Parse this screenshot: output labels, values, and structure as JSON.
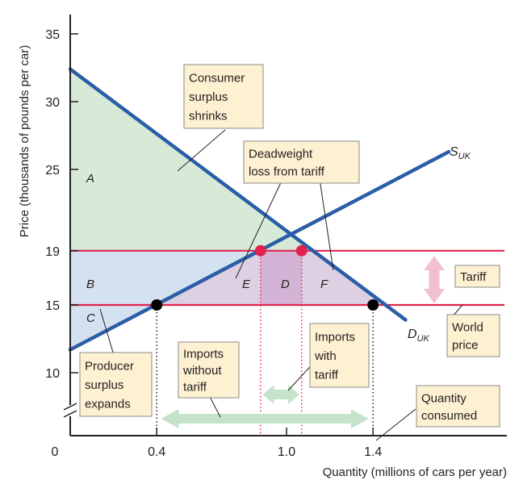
{
  "chart_data": {
    "type": "line",
    "xlabel": "Quantity (millions of cars per year)",
    "ylabel": "Price (thousands of pounds per car)",
    "xlim": [
      0,
      2.0
    ],
    "ylim": [
      8,
      37
    ],
    "origin_label": "0",
    "x_ticks": [
      {
        "value": 0.4,
        "label": "0.4"
      },
      {
        "value": 1.0,
        "label": "1.0"
      },
      {
        "value": 1.4,
        "label": "1.4"
      }
    ],
    "y_ticks": [
      {
        "value": 10,
        "label": "10",
        "color": "#231f20"
      },
      {
        "value": 15,
        "label": "15",
        "color": "#231f20"
      },
      {
        "value": 19,
        "label": "19",
        "color": "#e0244e"
      },
      {
        "value": 25,
        "label": "25",
        "color": "#231f20"
      },
      {
        "value": 30,
        "label": "30",
        "color": "#231f20"
      },
      {
        "value": 35,
        "label": "35",
        "color": "#231f20"
      }
    ],
    "series": [
      {
        "name": "D_UK",
        "main": "D",
        "sub": "UK",
        "color": "#2b5ea7",
        "x": [
          0,
          1.55
        ],
        "y": [
          32.4,
          13.9
        ]
      },
      {
        "name": "S_UK",
        "main": "S",
        "sub": "UK",
        "color": "#2b5ea7",
        "x": [
          0,
          1.75
        ],
        "y": [
          11.7,
          26.3
        ]
      }
    ],
    "hlines": [
      {
        "name": "world-price",
        "y": 15,
        "color": "#e0244e"
      },
      {
        "name": "tariff-price",
        "y": 19,
        "color": "#e0244e"
      }
    ],
    "points": [
      {
        "x": 0.4,
        "y": 15,
        "color": "#000000"
      },
      {
        "x": 1.4,
        "y": 15,
        "color": "#000000"
      },
      {
        "x": 0.88,
        "y": 19,
        "color": "#e0244e"
      },
      {
        "x": 1.07,
        "y": 19,
        "color": "#e0244e"
      }
    ],
    "regions": [
      {
        "label": "A",
        "color": "#d7ead8"
      },
      {
        "label": "B",
        "color": "#d4e1f1"
      },
      {
        "label": "C",
        "color": "#d4e1f1"
      },
      {
        "label": "E",
        "color": "#ddd0e3"
      },
      {
        "label": "D",
        "color": "#d3b4d6"
      },
      {
        "label": "F",
        "color": "#ddd0e3"
      }
    ],
    "annotations": [
      {
        "key": "consumer",
        "lines": [
          "Consumer",
          "surplus",
          "shrinks"
        ]
      },
      {
        "key": "deadweight",
        "lines": [
          "Deadweight",
          "loss from tariff"
        ]
      },
      {
        "key": "tariff",
        "lines": [
          "Tariff"
        ]
      },
      {
        "key": "world",
        "lines": [
          "World",
          "price"
        ]
      },
      {
        "key": "imports_with",
        "lines": [
          "Imports",
          "with",
          "tariff"
        ]
      },
      {
        "key": "imports_without",
        "lines": [
          "Imports",
          "without",
          "tariff"
        ]
      },
      {
        "key": "producer",
        "lines": [
          "Producer",
          "surplus",
          "expands"
        ]
      },
      {
        "key": "quantity",
        "lines": [
          "Quantity",
          "consumed"
        ]
      }
    ],
    "colors": {
      "axis": "#231f20",
      "curve": "#2b5ea7",
      "price_line": "#e0244e",
      "box_fill": "#fdf1d2",
      "box_border": "#8a8a8a",
      "arrow": "#c5e3cb",
      "tariff_arrow": "#f3bfd3"
    }
  }
}
